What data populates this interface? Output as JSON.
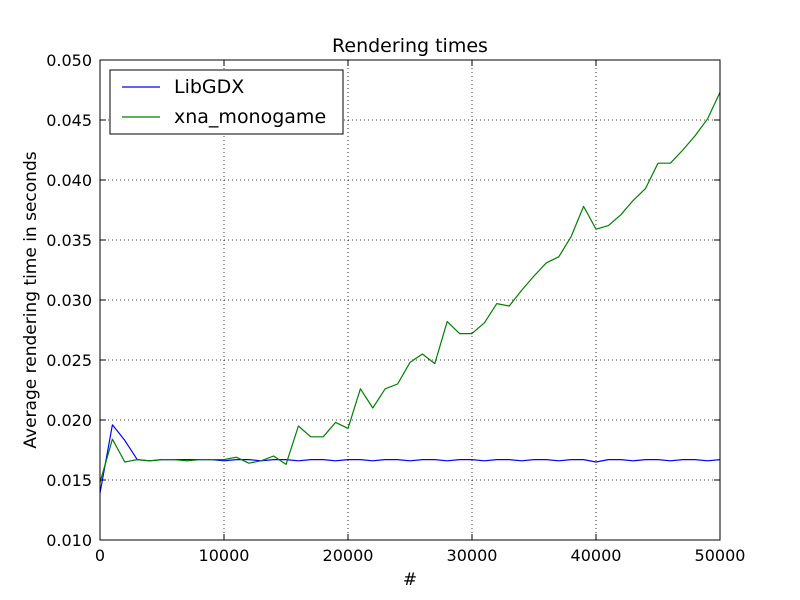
{
  "chart_data": {
    "type": "line",
    "title": "Rendering times",
    "xlabel": "#",
    "ylabel": "Average rendering time in seconds",
    "xlim": [
      0,
      50000
    ],
    "ylim": [
      0.01,
      0.05
    ],
    "xticks": [
      "0",
      "10000",
      "20000",
      "30000",
      "40000",
      "50000"
    ],
    "yticks": [
      "0.010",
      "0.015",
      "0.020",
      "0.025",
      "0.030",
      "0.035",
      "0.040",
      "0.045",
      "0.050"
    ],
    "grid": true,
    "legend_position": "top-left",
    "x": [
      0,
      1000,
      2000,
      3000,
      4000,
      5000,
      6000,
      7000,
      8000,
      9000,
      10000,
      11000,
      12000,
      13000,
      14000,
      15000,
      16000,
      17000,
      18000,
      19000,
      20000,
      21000,
      22000,
      23000,
      24000,
      25000,
      26000,
      27000,
      28000,
      29000,
      30000,
      31000,
      32000,
      33000,
      34000,
      35000,
      36000,
      37000,
      38000,
      39000,
      40000,
      41000,
      42000,
      43000,
      44000,
      45000,
      46000,
      47000,
      48000,
      49000,
      50000
    ],
    "series": [
      {
        "name": "LibGDX",
        "color": "#0000ff",
        "values": [
          0.0139,
          0.0196,
          0.0183,
          0.0167,
          0.0166,
          0.0167,
          0.0167,
          0.0167,
          0.0167,
          0.0167,
          0.0166,
          0.0167,
          0.0167,
          0.0166,
          0.0167,
          0.0167,
          0.0166,
          0.0167,
          0.0167,
          0.0166,
          0.0167,
          0.0167,
          0.0166,
          0.0167,
          0.0167,
          0.0166,
          0.0167,
          0.0167,
          0.0166,
          0.0167,
          0.0167,
          0.0166,
          0.0167,
          0.0167,
          0.0166,
          0.0167,
          0.0167,
          0.0166,
          0.0167,
          0.0167,
          0.0165,
          0.0167,
          0.0167,
          0.0166,
          0.0167,
          0.0167,
          0.0166,
          0.0167,
          0.0167,
          0.0166,
          0.0167
        ]
      },
      {
        "name": "xna_monogame",
        "color": "#008000",
        "values": [
          0.0148,
          0.0184,
          0.0165,
          0.0167,
          0.0166,
          0.0167,
          0.0167,
          0.0166,
          0.0167,
          0.0167,
          0.0167,
          0.0169,
          0.0164,
          0.0166,
          0.017,
          0.0163,
          0.0195,
          0.0186,
          0.0186,
          0.0198,
          0.0193,
          0.0226,
          0.021,
          0.0226,
          0.023,
          0.0248,
          0.0255,
          0.0247,
          0.0282,
          0.0272,
          0.0272,
          0.0281,
          0.0297,
          0.0295,
          0.0308,
          0.032,
          0.0331,
          0.0336,
          0.0353,
          0.0378,
          0.0359,
          0.0362,
          0.0371,
          0.0383,
          0.0393,
          0.0414,
          0.0414,
          0.0425,
          0.0437,
          0.0451,
          0.0473
        ]
      }
    ]
  }
}
